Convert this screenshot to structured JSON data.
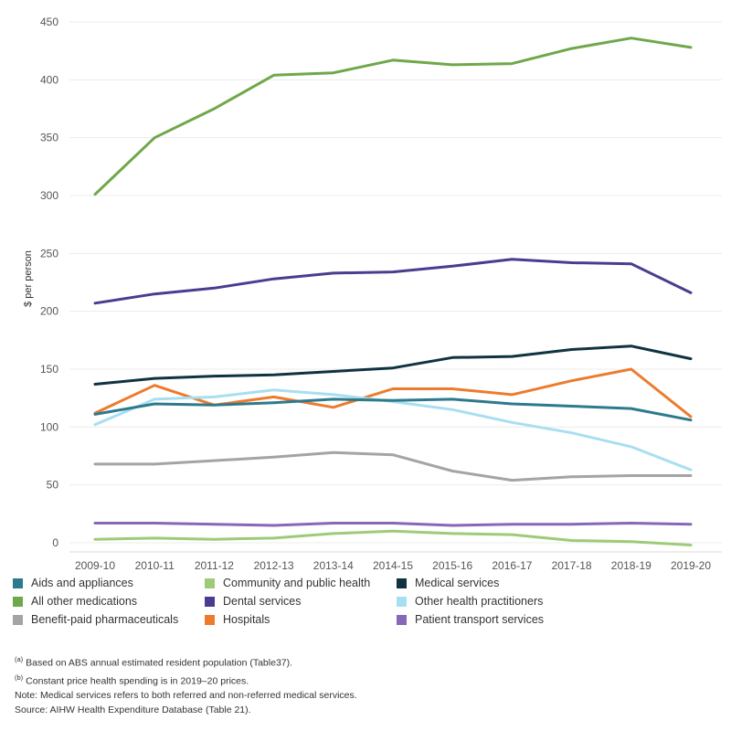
{
  "chart_data": {
    "type": "line",
    "ylabel": "$ per person",
    "ylim": [
      0,
      450
    ],
    "yticks": [
      0,
      50,
      100,
      150,
      200,
      250,
      300,
      350,
      400,
      450
    ],
    "grid": "horizontal",
    "legend_position": "bottom",
    "categories": [
      "2009-10",
      "2010-11",
      "2011-12",
      "2012-13",
      "2013-14",
      "2014-15",
      "2015-16",
      "2016-17",
      "2017-18",
      "2018-19",
      "2019-20"
    ],
    "series": [
      {
        "name": "All other medications",
        "color": "#6fa84a",
        "values": [
          301,
          350,
          375,
          404,
          406,
          417,
          413,
          414,
          427,
          436,
          428
        ]
      },
      {
        "name": "Dental services",
        "color": "#4b3c8f",
        "values": [
          207,
          215,
          220,
          228,
          233,
          234,
          239,
          245,
          242,
          241,
          216
        ]
      },
      {
        "name": "Medical services",
        "color": "#0f3341",
        "values": [
          137,
          142,
          144,
          145,
          148,
          151,
          160,
          161,
          167,
          170,
          159
        ]
      },
      {
        "name": "Hospitals",
        "color": "#ed7b2e",
        "values": [
          112,
          136,
          119,
          126,
          117,
          133,
          133,
          128,
          140,
          150,
          109
        ]
      },
      {
        "name": "Other health practitioners",
        "color": "#a8dff0",
        "values": [
          102,
          124,
          126,
          132,
          128,
          122,
          115,
          104,
          95,
          83,
          63
        ]
      },
      {
        "name": "Aids and appliances",
        "color": "#2d7a8c",
        "values": [
          111,
          120,
          119,
          121,
          124,
          123,
          124,
          120,
          118,
          116,
          106
        ]
      },
      {
        "name": "Benefit-paid pharmaceuticals",
        "color": "#a2a4a5",
        "values": [
          68,
          68,
          71,
          74,
          78,
          76,
          62,
          54,
          57,
          58,
          58
        ]
      },
      {
        "name": "Patient transport services",
        "color": "#8667b8",
        "values": [
          17,
          17,
          16,
          15,
          17,
          17,
          15,
          16,
          16,
          17,
          16
        ]
      },
      {
        "name": "Community and public health",
        "color": "#9ecb78",
        "values": [
          3,
          4,
          3,
          4,
          8,
          10,
          8,
          7,
          2,
          1,
          -2
        ]
      }
    ]
  },
  "legend": [
    {
      "label": "Aids and appliances",
      "color": "#2d7a8c"
    },
    {
      "label": "Community and public health",
      "color": "#9ecb78"
    },
    {
      "label": "Medical services",
      "color": "#0f3341"
    },
    {
      "label": "All other medications",
      "color": "#6fa84a"
    },
    {
      "label": "Dental services",
      "color": "#4b3c8f"
    },
    {
      "label": "Other health practitioners",
      "color": "#a8dff0"
    },
    {
      "label": "Benefit-paid pharmaceuticals",
      "color": "#a2a4a5"
    },
    {
      "label": "Hospitals",
      "color": "#ed7b2e"
    },
    {
      "label": "Patient transport services",
      "color": "#8667b8"
    }
  ],
  "notes": {
    "a_marker": "(a)",
    "a_text": "Based on ABS annual estimated resident population (Table37).",
    "b_marker": "(b)",
    "b_text": "Constant price health spending is in 2019–20 prices.",
    "note": "Note: Medical services refers to both referred and non-referred medical services.",
    "source": "Source: AIHW Health Expenditure Database (Table 21)."
  }
}
